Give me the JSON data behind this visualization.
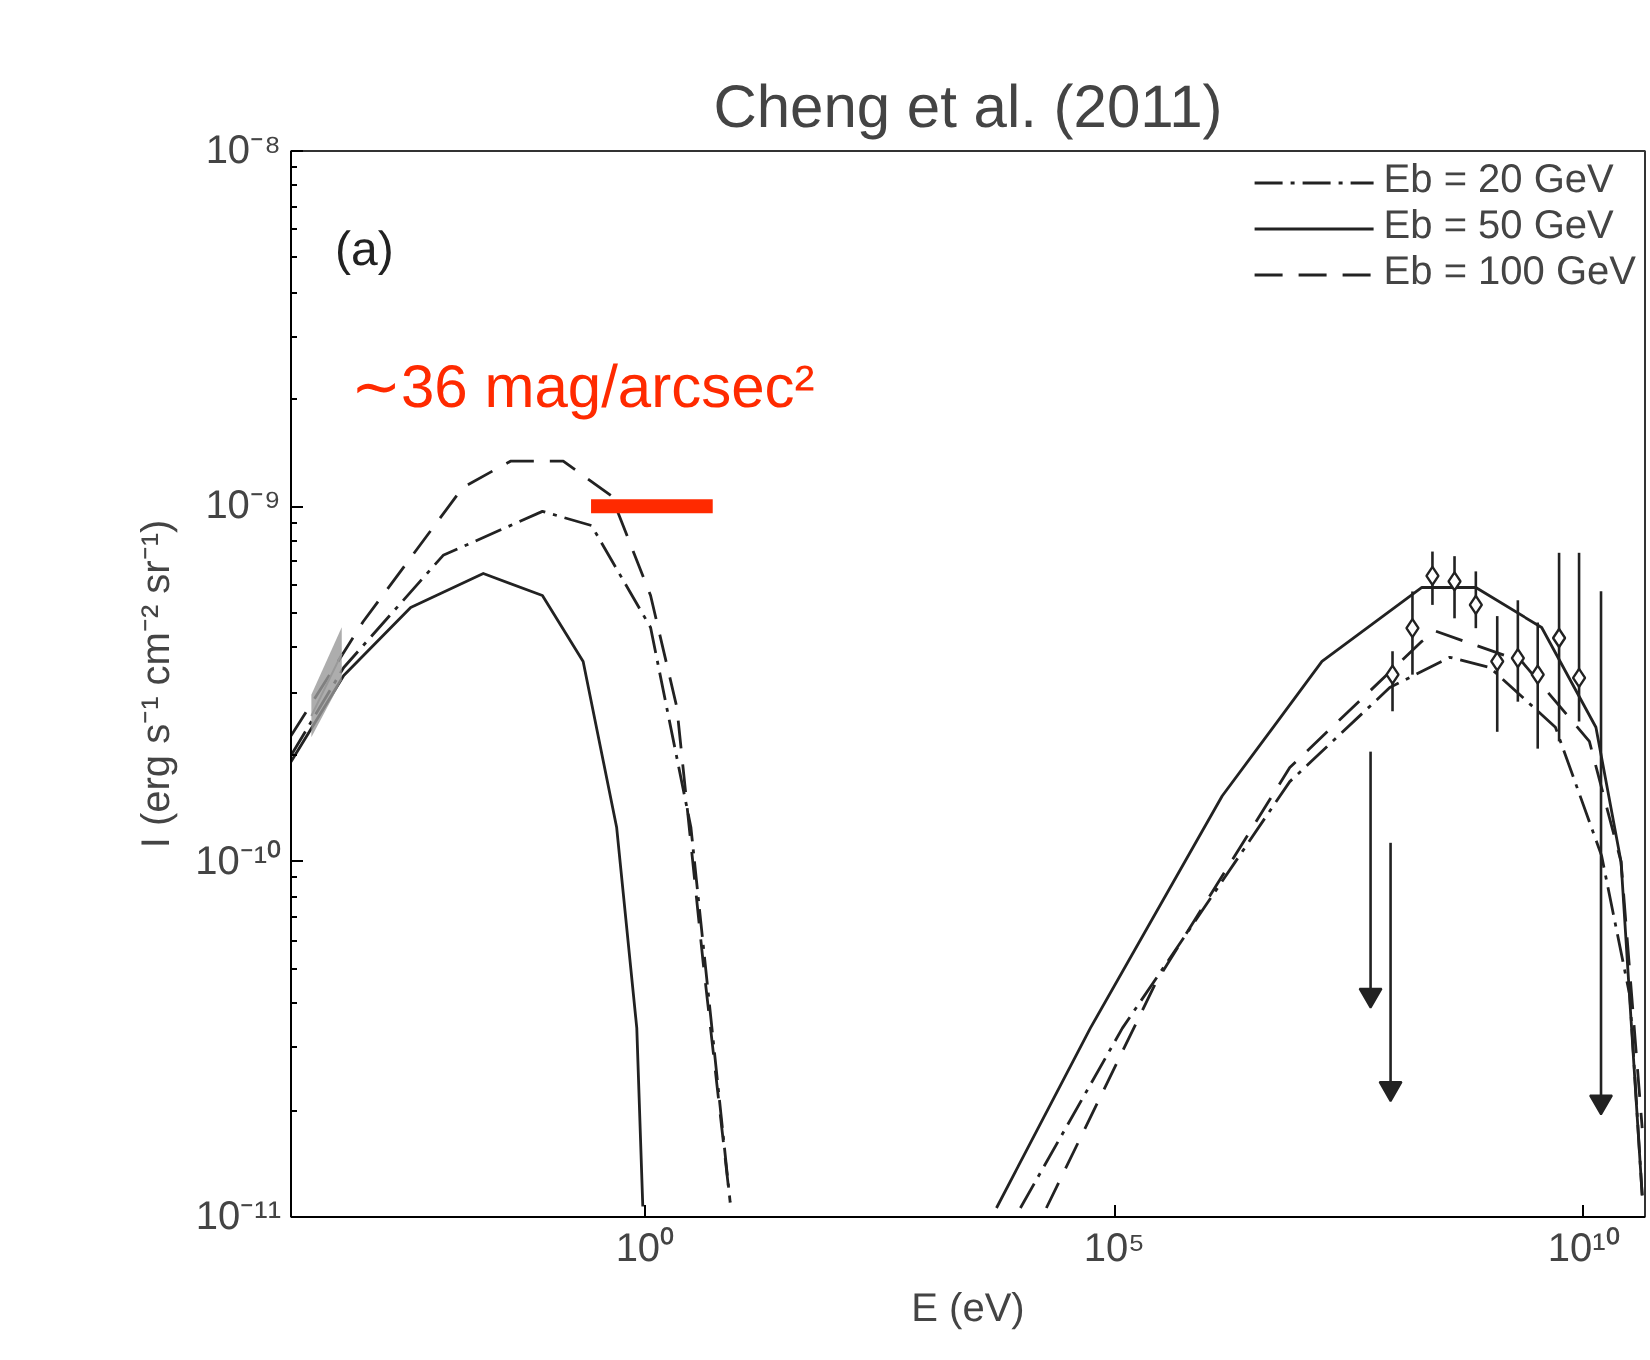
{
  "chart_data": {
    "type": "line",
    "title": "Cheng et al. (2011)",
    "xlabel": "E (eV)",
    "ylabel": "I (erg s⁻¹ cm⁻² sr⁻¹)",
    "log": "xy",
    "grid": false,
    "legend": "top right",
    "xlim": [
      0.00017,
      45000000000.0
    ],
    "ylim": [
      1e-11,
      1e-08
    ],
    "xticks": [
      {
        "value": 1,
        "label": "10⁰"
      },
      {
        "value": 100000.0,
        "label": "10⁵"
      },
      {
        "value": 10000000000.0,
        "label": "10¹⁰"
      }
    ],
    "yticks": [
      {
        "value": 1e-11,
        "label": "10⁻¹¹"
      },
      {
        "value": 1e-10,
        "label": "10⁻¹⁰"
      },
      {
        "value": 1e-09,
        "label": "10⁻⁹"
      },
      {
        "value": 1e-08,
        "label": "10⁻⁸"
      }
    ],
    "annotations": [
      "(a)",
      "∼36 mag/arcsec²"
    ],
    "series": [
      {
        "name": "Eb = 20 GeV",
        "color": "#222222",
        "line_style": "dashdot",
        "x": [
          0.00017,
          0.00062,
          0.0071,
          0.081,
          0.27,
          1.15,
          3.09,
          8.1,
          100,
          10000.0,
          122000.0,
          7400000.0,
          86000000.0,
          375000000.0,
          1000000000.0,
          5000000000.0,
          15500000000.0,
          31000000000.0,
          42000000000.0
        ],
        "values": [
          1.99e-10,
          3.52e-10,
          7.28e-10,
          9.68e-10,
          8.83e-10,
          4.56e-10,
          1.25e-10,
          1.1e-11,
          null,
          1.06e-11,
          3.4e-11,
          1.68e-10,
          3.09e-10,
          3.76e-10,
          3.52e-10,
          2.39e-10,
          1.04e-10,
          4.2e-11,
          1.15e-11
        ]
      },
      {
        "name": "Eb = 50 GeV",
        "color": "#222222",
        "line_style": "solid",
        "x": [
          0.00017,
          0.00062,
          0.0032,
          0.019,
          0.081,
          0.22,
          0.5,
          0.82,
          0.95,
          100,
          5560.0,
          55600.0,
          1410000.0,
          16300000.0,
          189000000.0,
          710000000.0,
          3570000000.0,
          13500000000.0,
          25000000000.0,
          42000000000.0
        ],
        "values": [
          1.91e-10,
          3.34e-10,
          5.19e-10,
          6.47e-10,
          5.61e-10,
          3.66e-10,
          1.25e-10,
          3.4e-11,
          1.07e-11,
          null,
          1.06e-11,
          3.4e-11,
          1.53e-10,
          3.66e-10,
          5.91e-10,
          5.91e-10,
          4.56e-10,
          2.39e-10,
          1e-10,
          1.15e-11
        ]
      },
      {
        "name": "Eb = 100 GeV",
        "color": "#222222",
        "line_style": "dashed",
        "x": [
          0.00017,
          0.001,
          0.0115,
          0.037,
          0.135,
          0.44,
          1.15,
          2.19,
          4.17,
          8.1,
          100,
          18900.0,
          280000.0,
          7400000.0,
          189000000.0,
          267000000.0,
          2190000000.0,
          11500000000.0,
          25000000000.0,
          42000000000.0
        ],
        "values": [
          2.26e-10,
          4.74e-10,
          1.13e-09,
          1.34e-09,
          1.34e-09,
          1.07e-09,
          5.61e-10,
          2.72e-10,
          5.22e-11,
          1.1e-11,
          null,
          1.06e-11,
          4.59e-11,
          1.84e-10,
          4.17e-10,
          4.45e-10,
          3.66e-10,
          2.18e-10,
          1e-10,
          1.78e-11
        ]
      },
      {
        "color": "#999999",
        "x": [
          0.00028,
          0.00059
        ],
        "values": [
          2.57e-10,
          3.85e-10
        ],
        "lower": [
          2.24e-10,
          3.24e-10
        ],
        "upper": [
          2.95e-10,
          4.57e-10
        ]
      },
      {
        "color": "#ff2a00",
        "x": [
          0.267,
          5.28
        ],
        "values": [
          1e-09,
          1e-09
        ]
      },
      {
        "type": "scatter",
        "marker": "diamond",
        "color": "#222222",
        "x": [
          245000000.0,
          421000000.0,
          710000000.0,
          150000000.0,
          92000000.0,
          1200000000.0,
          1990000000.0,
          3240000000.0,
          5470000000.0,
          8930000000.0
        ],
        "values": [
          6.37e-10,
          6.15e-10,
          5.28e-10,
          4.54e-10,
          3.36e-10,
          3.66e-10,
          3.74e-10,
          3.36e-10,
          4.26e-10,
          3.29e-10
        ],
        "errors": [
          [
            5.28e-10,
            7.46e-10
          ],
          [
            4.84e-10,
            7.24e-10
          ],
          [
            4.54e-10,
            6.56e-10
          ],
          [
            3.36e-10,
            5.76e-10
          ],
          [
            2.65e-10,
            3.91e-10
          ],
          [
            2.32e-10,
            4.91e-10
          ],
          [
            2.82e-10,
            5.44e-10
          ],
          [
            2.08e-10,
            4.71e-10
          ],
          [
            2.18e-10,
            7.4e-10
          ],
          [
            2.48e-10,
            7.4e-10
          ]
        ]
      },
      {
        "type": "scatter",
        "marker": "triangle",
        "color": "#222222",
        "x": [
          53700000.0,
          87700000.0,
          15300000000.0
        ],
        "values": [
          4.21e-11,
          2.3e-11,
          2.11e-11
        ],
        "errors": [
          [
            4.21e-11,
            2.04e-10
          ],
          [
            2.3e-11,
            1.13e-10
          ],
          [
            2.11e-11,
            5.77e-10
          ]
        ]
      }
    ]
  }
}
